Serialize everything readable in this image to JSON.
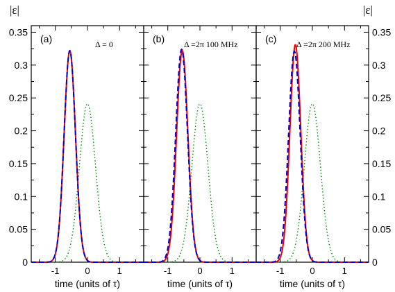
{
  "chart_data": {
    "type": "line",
    "ylabel": "|ε|",
    "xlabel": "time (units of τ)",
    "x_range": [
      -1.75,
      1.75
    ],
    "ylim": [
      0,
      0.36
    ],
    "yticks": [
      "0",
      "0.05",
      "0.1",
      "0.15",
      "0.2",
      "0.25",
      "0.3",
      "0.35"
    ],
    "ytick_values": [
      0,
      0.05,
      0.1,
      0.15,
      0.2,
      0.25,
      0.3,
      0.35
    ],
    "xticks": [
      "-1",
      "0",
      "1"
    ],
    "xtick_values": [
      -1,
      0,
      1
    ],
    "grid": false,
    "colors": {
      "solid": "#ee0000",
      "dashed": "#0000cc",
      "dotted": "#008800"
    },
    "panels": [
      {
        "label": "(a)",
        "annotation": "Δ = 0",
        "series": [
          {
            "style": "solid",
            "peak_t": -0.55,
            "peak": 0.322,
            "width": 0.25
          },
          {
            "style": "dashed",
            "peak_t": -0.55,
            "peak": 0.322,
            "width": 0.25
          },
          {
            "style": "dotted",
            "peak_t": 0.0,
            "peak": 0.241,
            "width": 0.355
          }
        ]
      },
      {
        "label": "(b)",
        "annotation": "Δ =2π 100 MHz",
        "series": [
          {
            "style": "solid",
            "peak_t": -0.55,
            "peak": 0.322,
            "width": 0.25
          },
          {
            "style": "dashed",
            "peak_t": -0.57,
            "peak": 0.324,
            "width": 0.26
          },
          {
            "style": "dotted",
            "peak_t": 0.0,
            "peak": 0.241,
            "width": 0.355
          }
        ]
      },
      {
        "label": "(c)",
        "annotation": "Δ =2π 200 MHz",
        "series": [
          {
            "style": "solid",
            "peak_t": -0.53,
            "peak": 0.331,
            "width": 0.24
          },
          {
            "style": "dashed",
            "peak_t": -0.56,
            "peak": 0.321,
            "width": 0.255
          },
          {
            "style": "dotted",
            "peak_t": 0.0,
            "peak": 0.241,
            "width": 0.355
          }
        ]
      }
    ]
  }
}
